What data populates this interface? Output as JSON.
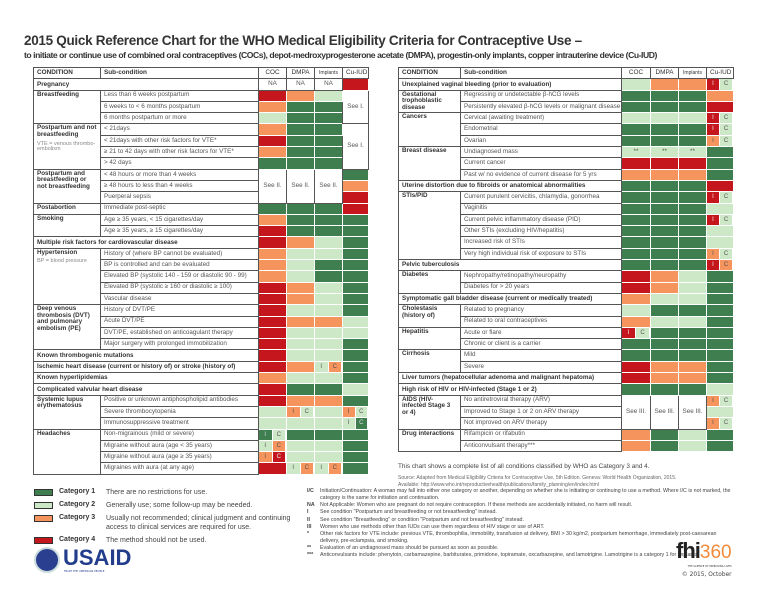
{
  "title": "2015 Quick Reference Chart for the WHO Medical Eligibility Criteria for Contraceptive Use –",
  "subtitle": "to initiate or continue use of combined oral contraceptives (COCs), depot-medroxyprogesterone acetate (DMPA), progestin-only implants, copper intrauterine device (Cu-IUD)",
  "colors": {
    "category_1": "#3f7f4f",
    "category_2": "#cde8c6",
    "category_3": "#f5945c",
    "category_4": "#c4161c"
  },
  "ic_labels": [
    "I",
    "C"
  ],
  "headers": [
    "CONDITION",
    "Sub-condition",
    "COC",
    "DMPA",
    "Implants",
    "Cu-IUD"
  ],
  "left_table": [
    {
      "condition": "Pregnancy",
      "cells": [
        "NA",
        "NA",
        "NA",
        "4"
      ]
    },
    {
      "condition": "Breastfeeding",
      "subs": [
        {
          "label": "Less than 6 weeks postpartum",
          "cells": [
            "4",
            "3",
            "2",
            {
              "text": "See I.",
              "rowspan": 3
            }
          ]
        },
        {
          "label": "6 weeks to < 6 months postpartum",
          "cells": [
            "3",
            "1",
            "1",
            null
          ]
        },
        {
          "label": "6 months postpartum or more",
          "cells": [
            "2",
            "1",
            "1",
            null
          ]
        }
      ]
    },
    {
      "condition": "Postpartum and not breastfeeding",
      "note": "VTE = venous thrombo­embolism",
      "subs": [
        {
          "label": "< 21days",
          "cells": [
            "3",
            "1",
            "1",
            {
              "text": "See I.",
              "rowspan": 4
            }
          ]
        },
        {
          "label": "< 21days with other risk factors for VTE*",
          "cells": [
            "4",
            "1",
            "1",
            null
          ]
        },
        {
          "label": "≥ 21 to 42 days with other risk factors for VTE*",
          "cells": [
            "3",
            "1",
            "1",
            null
          ]
        },
        {
          "label": "> 42 days",
          "cells": [
            "1",
            "1",
            "1",
            null
          ]
        }
      ]
    },
    {
      "condition": "Postpartum and breastfeeding or not breastfeeding",
      "subs": [
        {
          "label": "< 48 hours or more than 4 weeks",
          "cells": [
            {
              "text": "See II.",
              "rowspan": 3
            },
            {
              "text": "See II.",
              "rowspan": 3
            },
            {
              "text": "See II.",
              "rowspan": 3
            },
            "1"
          ]
        },
        {
          "label": "≥ 48 hours to less than 4 weeks",
          "cells": [
            null,
            null,
            null,
            "3"
          ]
        },
        {
          "label": "Puerperal sepsis",
          "cells": [
            null,
            null,
            null,
            "4"
          ]
        }
      ]
    },
    {
      "condition": "Postabortion",
      "subs": [
        {
          "label": "Immediate post-septic",
          "cells": [
            "1",
            "1",
            "1",
            "4"
          ]
        }
      ]
    },
    {
      "condition": "Smoking",
      "subs": [
        {
          "label": "Age ≥ 35 years, < 15 cigarettes/day",
          "cells": [
            "3",
            "1",
            "1",
            "1"
          ]
        },
        {
          "label": "Age ≥ 35 years, ≥ 15 cigarettes/day",
          "cells": [
            "4",
            "1",
            "1",
            "1"
          ]
        }
      ]
    },
    {
      "condition": "Multiple risk factors for cardiovascular disease",
      "cells": [
        "4",
        "3",
        "2",
        "1"
      ]
    },
    {
      "condition": "Hypertension",
      "note": "BP = blood pressure",
      "subs": [
        {
          "label": "History of (where BP cannot be evaluated)",
          "cells": [
            "3",
            "2",
            "2",
            "1"
          ]
        },
        {
          "label": "BP is controlled and can be evaluated",
          "cells": [
            "3",
            "2",
            "1",
            "1"
          ]
        },
        {
          "label": "Elevated BP (systolic 140 - 159 or diastolic 90 - 99)",
          "cells": [
            "3",
            "2",
            "1",
            "1"
          ]
        },
        {
          "label": "Elevated BP (systolic ≥ 160 or diastolic ≥ 100)",
          "cells": [
            "4",
            "3",
            "2",
            "1"
          ]
        },
        {
          "label": "Vascular disease",
          "cells": [
            "4",
            "3",
            "2",
            "1"
          ]
        }
      ]
    },
    {
      "condition": "Deep venous thrombosis (DVT) and pulmonary embolism (PE)",
      "subs": [
        {
          "label": "History of DVT/PE",
          "cells": [
            "4",
            "2",
            "2",
            "1"
          ]
        },
        {
          "label": "Acute DVT/PE",
          "cells": [
            "4",
            "3",
            "3",
            "2"
          ]
        },
        {
          "label": "DVT/PE, established on anticoagulant therapy",
          "cells": [
            "4",
            "2",
            "2",
            "2"
          ]
        },
        {
          "label": "Major surgery with prolonged immobilization",
          "cells": [
            "4",
            "2",
            "2",
            "1"
          ]
        }
      ]
    },
    {
      "condition": "Known thrombogenic mutations",
      "cells": [
        "4",
        "2",
        "2",
        "1"
      ]
    },
    {
      "condition": "Ischemic heart disease (current or history of) or stroke (history of)",
      "cells": [
        "4",
        "3",
        {
          "i": "2",
          "c": "3"
        },
        "1"
      ]
    },
    {
      "condition": "Known hyperlipidemias",
      "cells": [
        "3",
        "2",
        "2",
        "1"
      ]
    },
    {
      "condition": "Complicated valvular heart disease",
      "cells": [
        "4",
        "1",
        "1",
        "2"
      ]
    },
    {
      "condition": "Systemic lupus erythematosus",
      "subs": [
        {
          "label": "Positive or unknown antiphospholipid antibodies",
          "cells": [
            "4",
            "3",
            "3",
            "1"
          ]
        },
        {
          "label": "Severe thrombocytopenia",
          "cells": [
            "2",
            {
              "i": "3",
              "c": "2"
            },
            "2",
            {
              "i": "3",
              "c": "2"
            }
          ]
        },
        {
          "label": "Immunosuppressive treatment",
          "cells": [
            "2",
            "2",
            "2",
            {
              "i": "2",
              "c": "1"
            }
          ]
        }
      ]
    },
    {
      "condition": "Headaches",
      "subs": [
        {
          "label": "Non-migrainous (mild or severe)",
          "cells": [
            {
              "i": "1",
              "c": "2"
            },
            "1",
            "1",
            "1"
          ]
        },
        {
          "label": "Migraine without aura (age < 35 years)",
          "cells": [
            {
              "i": "2",
              "c": "3"
            },
            "2",
            "2",
            "1"
          ]
        },
        {
          "label": "Migraine without aura (age ≥ 35 years)",
          "cells": [
            {
              "i": "3",
              "c": "4"
            },
            "2",
            "2",
            "1"
          ]
        },
        {
          "label": "Migraines with aura (at any age)",
          "cells": [
            "4",
            {
              "i": "2",
              "c": "3"
            },
            {
              "i": "2",
              "c": "3"
            },
            "1"
          ]
        }
      ]
    }
  ],
  "right_table": [
    {
      "condition": "Unexplained vaginal bleeding (prior to evaluation)",
      "cells": [
        "2",
        "3",
        "3",
        {
          "i": "4",
          "c": "2"
        }
      ]
    },
    {
      "condition": "Gestational trophoblastic disease",
      "subs": [
        {
          "label": "Regressing or undetectable β-hCG levels",
          "cells": [
            "1",
            "1",
            "1",
            "3"
          ]
        },
        {
          "label": "Persistently elevated β-hCG levels or malignant disease",
          "cells": [
            "1",
            "1",
            "1",
            "4"
          ]
        }
      ]
    },
    {
      "condition": "Cancers",
      "subs": [
        {
          "label": "Cervical (awaiting treatment)",
          "cells": [
            "2",
            "2",
            "2",
            {
              "i": "4",
              "c": "2"
            }
          ]
        },
        {
          "label": "Endometrial",
          "cells": [
            "1",
            "1",
            "1",
            {
              "i": "4",
              "c": "2"
            }
          ]
        },
        {
          "label": "Ovarian",
          "cells": [
            "1",
            "1",
            "1",
            {
              "i": "3",
              "c": "2"
            }
          ]
        }
      ]
    },
    {
      "condition": "Breast disease",
      "subs": [
        {
          "label": "Undiagnosed mass",
          "cells": [
            {
              "cat": "2",
              "mark": "**"
            },
            {
              "cat": "2",
              "mark": "**"
            },
            {
              "cat": "2",
              "mark": "**"
            },
            "1"
          ]
        },
        {
          "label": "Current cancer",
          "cells": [
            "4",
            "4",
            "4",
            "1"
          ]
        },
        {
          "label": "Past w/ no evidence of current disease for 5 yrs",
          "cells": [
            "3",
            "3",
            "3",
            "1"
          ]
        }
      ]
    },
    {
      "condition": "Uterine distortion due to fibroids or anatomical abnormalities",
      "cells": [
        "1",
        "1",
        "1",
        "4"
      ]
    },
    {
      "condition": "STIs/PID",
      "subs": [
        {
          "label": "Current purulent cervicitis, chlamydia, gonorrhea",
          "cells": [
            "1",
            "1",
            "1",
            {
              "i": "4",
              "c": "2"
            }
          ]
        },
        {
          "label": "Vaginitis",
          "cells": [
            "1",
            "1",
            "1",
            "2"
          ]
        },
        {
          "label": "Current pelvic inflammatory disease (PID)",
          "cells": [
            "1",
            "1",
            "1",
            {
              "i": "4",
              "c": "2"
            }
          ]
        },
        {
          "label": "Other STIs (excluding HIV/hepatitis)",
          "cells": [
            "1",
            "1",
            "1",
            "2"
          ]
        },
        {
          "label": "Increased risk of STIs",
          "cells": [
            "1",
            "1",
            "1",
            "2"
          ]
        },
        {
          "label": "Very high individual risk of exposure to STIs",
          "cells": [
            "1",
            "1",
            "1",
            {
              "i": "3",
              "c": "2"
            }
          ]
        }
      ]
    },
    {
      "condition": "Pelvic tuberculosis",
      "cells": [
        "1",
        "1",
        "1",
        {
          "i": "4",
          "c": "3"
        }
      ]
    },
    {
      "condition": "Diabetes",
      "subs": [
        {
          "label": "Nephropathy/retinopathy/neuropathy",
          "cells": [
            "4",
            "3",
            "2",
            "1"
          ]
        },
        {
          "label": "Diabetes for > 20 years",
          "cells": [
            "4",
            "3",
            "2",
            "1"
          ]
        }
      ]
    },
    {
      "condition": "Symptomatic gall bladder disease (current or medically treated)",
      "cells": [
        "3",
        "2",
        "2",
        "1"
      ]
    },
    {
      "condition": "Cholestasis (history of)",
      "subs": [
        {
          "label": "Related to pregnancy",
          "cells": [
            "2",
            "1",
            "1",
            "1"
          ]
        },
        {
          "label": "Related to oral contraceptives",
          "cells": [
            "3",
            "2",
            "2",
            "1"
          ]
        }
      ]
    },
    {
      "condition": "Hepatitis",
      "subs": [
        {
          "label": "Acute or flare",
          "cells": [
            {
              "i": "4",
              "c": "2"
            },
            "1",
            "1",
            "1"
          ]
        },
        {
          "label": "Chronic or client is a carrier",
          "cells": [
            "1",
            "1",
            "1",
            "1"
          ]
        }
      ]
    },
    {
      "condition": "Cirrhosis",
      "subs": [
        {
          "label": "Mild",
          "cells": [
            "1",
            "1",
            "1",
            "1"
          ]
        },
        {
          "label": "Severe",
          "cells": [
            "4",
            "3",
            "3",
            "1"
          ]
        }
      ]
    },
    {
      "condition": "Liver tumors (hepatocellular adenoma and malignant hepatoma)",
      "cells": [
        "4",
        "3",
        "3",
        "1"
      ]
    },
    {
      "condition": "High risk of HIV or HIV-infected (Stage 1 or 2)",
      "cells": [
        "1",
        "1",
        "1",
        "2"
      ]
    },
    {
      "condition": "AIDS (HIV-infected Stage 3 or 4)",
      "subs": [
        {
          "label": "No antiretroviral therapy (ARV)",
          "cells": [
            {
              "text": "See III.",
              "rowspan": 3
            },
            {
              "text": "See III.",
              "rowspan": 3
            },
            {
              "text": "See III.",
              "rowspan": 3
            },
            {
              "i": "3",
              "c": "2"
            }
          ]
        },
        {
          "label": "Improved to Stage 1 or 2 on ARV therapy",
          "cells": [
            null,
            null,
            null,
            "2"
          ]
        },
        {
          "label": "Not improved on ARV therapy",
          "cells": [
            null,
            null,
            null,
            {
              "i": "3",
              "c": "2"
            }
          ]
        }
      ]
    },
    {
      "condition": "Drug interactions",
      "subs": [
        {
          "label": "Rifampicin or rifabutin",
          "cells": [
            "3",
            "1",
            "2",
            "1"
          ]
        },
        {
          "label": "Anticonvulsant therapy***",
          "cells": [
            "3",
            "1",
            "2",
            "1"
          ]
        }
      ]
    }
  ],
  "chart_note": "This chart shows a complete list of all conditions classified by WHO as Category 3 and 4.",
  "source_lines": [
    "Source: Adapted from Medical Eligibility Criteria for Contraceptive Use, 5th Edition. Geneva: World Health Organization, 2015.",
    "Available: http://www.who.int/reproductivehealth/publications/family_planning/en/index.html"
  ],
  "legend": [
    {
      "name": "Category 1",
      "desc": "There are no restrictions for use.",
      "cat": "1"
    },
    {
      "name": "Category 2",
      "desc": "Generally use; some follow-up may be needed.",
      "cat": "2"
    },
    {
      "name": "Category 3",
      "desc": "Usually not recommended; clinical judgment and continuing access to clinical services are required for use.",
      "cat": "3"
    },
    {
      "name": "Category 4",
      "desc": "The method should not be used.",
      "cat": "4"
    }
  ],
  "notes": [
    {
      "key": "I/C",
      "text": "Initiation/Continuation: A woman may fall into either one category or another, depending on whether she is initiating or continuing to use a method. Where I/C is not marked, the category is the same for initiation and continuation."
    },
    {
      "key": "NA",
      "text": "Not Applicable: Women who are pregnant do not require contraception. If these methods are accidentally initiated, no harm will result."
    },
    {
      "key": "I",
      "text": "See condition \"Postpartum and breastfeeding or not breastfeeding\" instead."
    },
    {
      "key": "II",
      "text": "See condition \"Breastfeeding\" or condition \"Postpartum and not breastfeeding\" instead."
    },
    {
      "key": "III",
      "text": "Women who use methods other than IUDs can use them regardless of HIV stage or use of ART."
    },
    {
      "key": "*",
      "text": "Other risk factors for VTE include: previous VTE, thrombophilia, immobility, transfusion at delivery, BMI > 30 kg/m2, postpartum hemorrhage, immediately post-caesarean delivery, pre-eclampsia, and smoking."
    },
    {
      "key": "**",
      "text": "Evaluation of an undiagnosed mass should be pursued as soon as possible."
    },
    {
      "key": "***",
      "text": "Anticonvulsants include: phenytoin, carbamazepine, barbiturates, primidone, topiramate, oxcarbazepine, and lamotrigine. Lamotrigine is a category 1 for implants."
    }
  ],
  "logos": {
    "usaid": "USAID",
    "usaid_tagline": "FROM THE AMERICAN PEOPLE",
    "fhi_a": "fhi",
    "fhi_b": "360",
    "fhi_tagline": "THE SCIENCE OF IMPROVING LIVES",
    "copyright": "© 2015, October"
  }
}
